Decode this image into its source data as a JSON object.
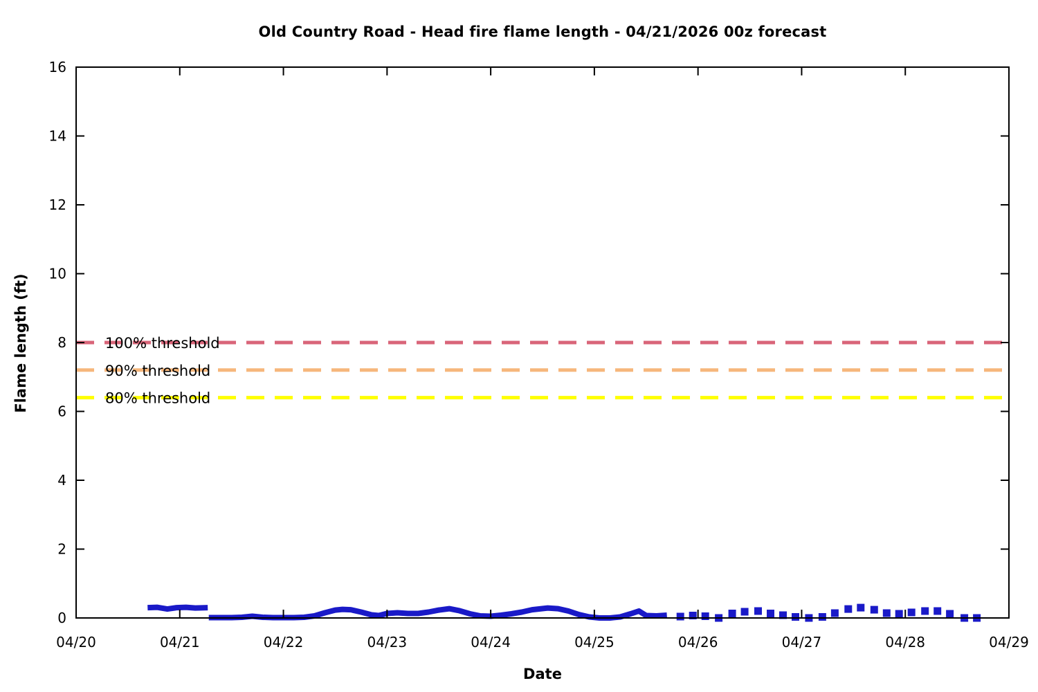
{
  "chart_data": {
    "type": "line",
    "title": "Old Country Road - Head fire flame length - 04/21/2026 00z forecast",
    "xlabel": "Date",
    "ylabel": "Flame length (ft)",
    "x_tick_labels": [
      "04/20",
      "04/21",
      "04/22",
      "04/23",
      "04/24",
      "04/25",
      "04/26",
      "04/27",
      "04/28",
      "04/29"
    ],
    "x_range_days": [
      0,
      9
    ],
    "ylim": [
      0,
      16
    ],
    "yticks": [
      0,
      2,
      4,
      6,
      8,
      10,
      12,
      14,
      16
    ],
    "grid": false,
    "legend_position": "none",
    "thresholds": [
      {
        "label": "100% threshold",
        "value": 8.0,
        "color": "#d96579",
        "style": "dashed"
      },
      {
        "label": "90% threshold",
        "value": 7.2,
        "color": "#f6b77c",
        "style": "dashed"
      },
      {
        "label": "80% threshold",
        "value": 6.4,
        "color": "#ffff00",
        "style": "dashed"
      }
    ],
    "series": [
      {
        "name": "head-fire-flame-length-solid",
        "style": "solid-line",
        "color": "#1a1ac8",
        "x_unit": "days_after_04_20",
        "y_unit": "ft",
        "segments": [
          [
            [
              0.69,
              0.3
            ],
            [
              0.78,
              0.31
            ],
            [
              0.88,
              0.26
            ],
            [
              0.97,
              0.3
            ],
            [
              1.06,
              0.31
            ],
            [
              1.15,
              0.29
            ],
            [
              1.27,
              0.3
            ]
          ],
          [
            [
              1.28,
              0.01
            ],
            [
              1.4,
              0.01
            ],
            [
              1.5,
              0.01
            ],
            [
              1.6,
              0.02
            ],
            [
              1.7,
              0.05
            ],
            [
              1.8,
              0.02
            ],
            [
              1.9,
              0.01
            ],
            [
              2.0,
              0.01
            ],
            [
              2.1,
              0.01
            ],
            [
              2.2,
              0.02
            ],
            [
              2.3,
              0.06
            ],
            [
              2.4,
              0.15
            ],
            [
              2.5,
              0.23
            ],
            [
              2.57,
              0.25
            ],
            [
              2.65,
              0.24
            ],
            [
              2.75,
              0.17
            ],
            [
              2.85,
              0.09
            ],
            [
              2.92,
              0.07
            ],
            [
              3.0,
              0.13
            ],
            [
              3.1,
              0.15
            ],
            [
              3.2,
              0.13
            ],
            [
              3.3,
              0.13
            ],
            [
              3.4,
              0.17
            ],
            [
              3.5,
              0.23
            ],
            [
              3.6,
              0.27
            ],
            [
              3.7,
              0.21
            ],
            [
              3.8,
              0.12
            ],
            [
              3.9,
              0.06
            ],
            [
              4.0,
              0.05
            ],
            [
              4.1,
              0.08
            ],
            [
              4.2,
              0.12
            ],
            [
              4.3,
              0.17
            ],
            [
              4.4,
              0.24
            ],
            [
              4.55,
              0.29
            ],
            [
              4.65,
              0.27
            ],
            [
              4.75,
              0.2
            ],
            [
              4.85,
              0.1
            ],
            [
              4.95,
              0.03
            ],
            [
              5.05,
              0.0
            ],
            [
              5.15,
              0.0
            ],
            [
              5.25,
              0.03
            ],
            [
              5.35,
              0.12
            ],
            [
              5.43,
              0.2
            ],
            [
              5.5,
              0.07
            ],
            [
              5.6,
              0.06
            ],
            [
              5.7,
              0.08
            ]
          ]
        ]
      },
      {
        "name": "head-fire-flame-length-extended",
        "style": "square-markers",
        "color": "#1a1ac8",
        "x_unit": "days_after_04_20",
        "y_unit": "ft",
        "points": [
          [
            5.83,
            0.04
          ],
          [
            5.95,
            0.07
          ],
          [
            6.07,
            0.05
          ],
          [
            6.2,
            0.0
          ],
          [
            6.33,
            0.13
          ],
          [
            6.45,
            0.18
          ],
          [
            6.58,
            0.2
          ],
          [
            6.7,
            0.13
          ],
          [
            6.82,
            0.08
          ],
          [
            6.94,
            0.03
          ],
          [
            7.07,
            0.0
          ],
          [
            7.2,
            0.03
          ],
          [
            7.32,
            0.14
          ],
          [
            7.45,
            0.26
          ],
          [
            7.57,
            0.3
          ],
          [
            7.7,
            0.24
          ],
          [
            7.82,
            0.14
          ],
          [
            7.94,
            0.12
          ],
          [
            8.06,
            0.16
          ],
          [
            8.19,
            0.2
          ],
          [
            8.31,
            0.2
          ],
          [
            8.43,
            0.12
          ],
          [
            8.57,
            0.0
          ],
          [
            8.69,
            0.0
          ]
        ]
      }
    ]
  }
}
